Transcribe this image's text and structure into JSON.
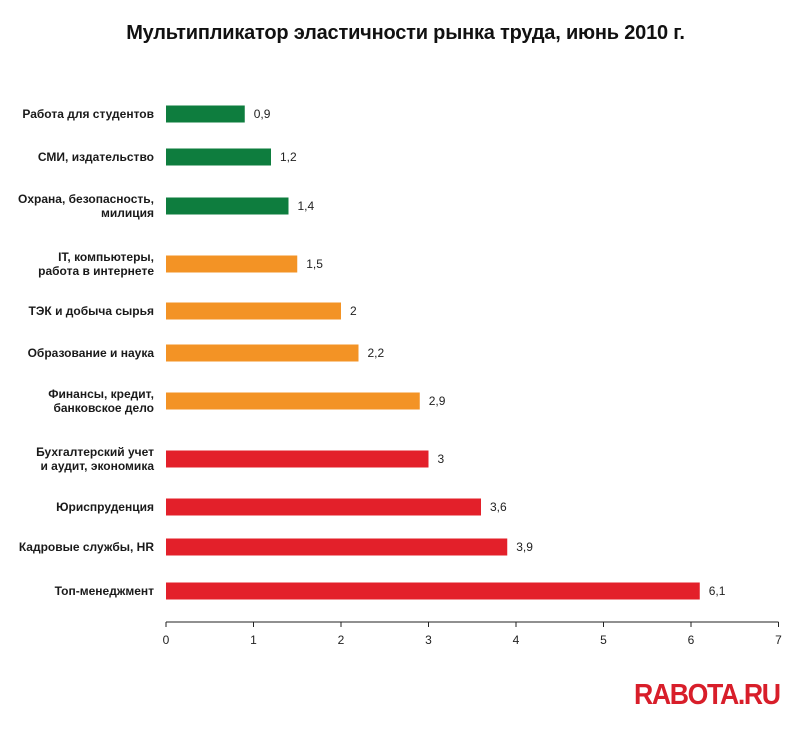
{
  "chart_data": {
    "type": "bar",
    "orientation": "horizontal",
    "title": "Мультипликатор эластичности рынка труда, июнь 2010 г.",
    "categories": [
      [
        "Работа для студентов"
      ],
      [
        "СМИ, издательство"
      ],
      [
        "Охрана, безопасность,",
        "милиция"
      ],
      [
        "IT, компьютеры,",
        "работа в интернете"
      ],
      [
        "ТЭК и добыча сырья"
      ],
      [
        "Образование и наука"
      ],
      [
        "Финансы, кредит,",
        "банковское дело"
      ],
      [
        "Бухгалтерский учет",
        "и аудит, экономика"
      ],
      [
        "Юриспруденция"
      ],
      [
        "Кадровые службы, HR"
      ],
      [
        "Топ-менеджмент"
      ]
    ],
    "values": [
      0.9,
      1.2,
      1.4,
      1.5,
      2,
      2.2,
      2.9,
      3,
      3.6,
      3.9,
      6.1
    ],
    "value_labels": [
      "0,9",
      "1,2",
      "1,4",
      "1,5",
      "2",
      "2,2",
      "2,9",
      "3",
      "3,6",
      "3,9",
      "6,1"
    ],
    "bar_colors": [
      "#0e7d3e",
      "#0e7d3e",
      "#0e7d3e",
      "#f39325",
      "#f39325",
      "#f39325",
      "#f39325",
      "#e3202a",
      "#e3202a",
      "#e3202a",
      "#e3202a"
    ],
    "xlim": [
      0,
      7
    ],
    "xticks": [
      0,
      1,
      2,
      3,
      4,
      5,
      6,
      7
    ],
    "grid": false,
    "xlabel": "",
    "ylabel": ""
  },
  "logo_text": "RABOTA.RU",
  "colors": {
    "green": "#0e7d3e",
    "orange": "#f39325",
    "red": "#e3202a",
    "logo": "#d81e2a"
  }
}
